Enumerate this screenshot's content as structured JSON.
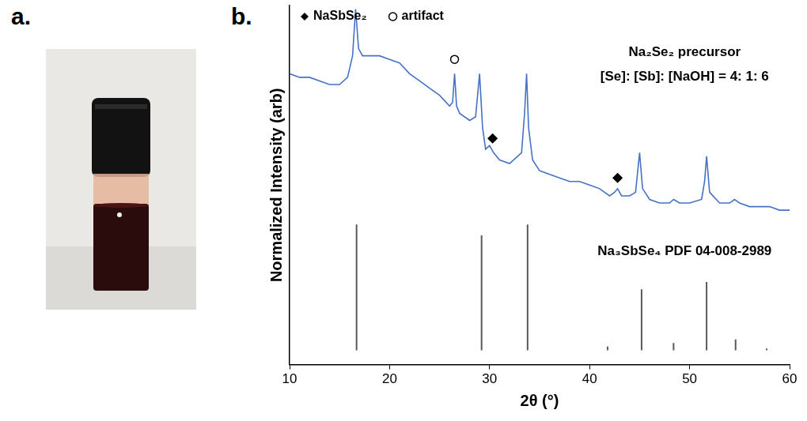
{
  "panel_labels": [
    "a.",
    "b."
  ],
  "chart_data": {
    "type": "line",
    "xlabel": "2θ (°)",
    "ylabel": "Normalized Intensity (arb)",
    "xlim": [
      10,
      60
    ],
    "xticks": [
      10,
      20,
      30,
      40,
      50,
      60
    ],
    "ylim": [
      0,
      100
    ],
    "grid": false,
    "tick_labels": "x",
    "legend": "top-left",
    "annotations": [
      "Na₂Se₂ precursor",
      "[Se]: [Sb]: [NaOH] = 4: 1: 6"
    ],
    "series": [
      {
        "type": "line",
        "color": "#4472c4",
        "x": [
          10,
          11,
          12,
          13,
          14,
          15,
          15.8,
          16.3,
          16.6,
          16.9,
          17.3,
          18,
          19,
          20,
          21,
          22,
          23,
          24,
          25,
          26,
          26.3,
          26.5,
          26.7,
          27,
          28,
          28.6,
          29.0,
          29.3,
          29.6,
          30.0,
          30.4,
          31,
          32,
          33.2,
          33.5,
          33.7,
          33.9,
          34.3,
          35,
          36,
          37,
          38,
          39,
          40,
          41,
          42,
          42.5,
          42.8,
          43.2,
          44,
          44.6,
          45.0,
          45.3,
          46,
          47,
          48,
          48.4,
          49,
          50,
          51.2,
          51.5,
          51.7,
          52.0,
          53,
          54,
          54.5,
          55,
          56,
          57,
          58,
          59,
          60
        ],
        "values": [
          81,
          80,
          80,
          79,
          78,
          78,
          80,
          86,
          99,
          88,
          86,
          86,
          86,
          85,
          84,
          81,
          79,
          77,
          75,
          72,
          73,
          81,
          72,
          70,
          68,
          69,
          81,
          66,
          60,
          61,
          59,
          57,
          56,
          59,
          70,
          81,
          66,
          57,
          54,
          53,
          52,
          51,
          51,
          50,
          49,
          47,
          48,
          49,
          47,
          47,
          48,
          59,
          49,
          46,
          45,
          45,
          46,
          45,
          45,
          46,
          51,
          58,
          48,
          45,
          45,
          46,
          45,
          44,
          44,
          44,
          43,
          43
        ]
      },
      {
        "name": "Na₃SbSe₄ PDF 04-008-2989",
        "type": "bar",
        "color": "#595959",
        "baseline": 4,
        "x": [
          16.7,
          29.2,
          33.8,
          41.8,
          45.2,
          48.4,
          51.7,
          54.6,
          57.7
        ],
        "values": [
          39,
          36,
          39,
          5,
          21,
          6,
          23,
          7,
          4.5
        ]
      },
      {
        "name": "NaSbSe₂",
        "type": "scatter",
        "marker": "diamond",
        "color": "#000000",
        "x": [
          30.3,
          42.8
        ],
        "values": [
          63,
          52
        ]
      },
      {
        "name": "artifact",
        "type": "scatter",
        "marker": "open_circle",
        "color": "#000000",
        "x": [
          26.5
        ],
        "values": [
          85
        ]
      }
    ]
  }
}
